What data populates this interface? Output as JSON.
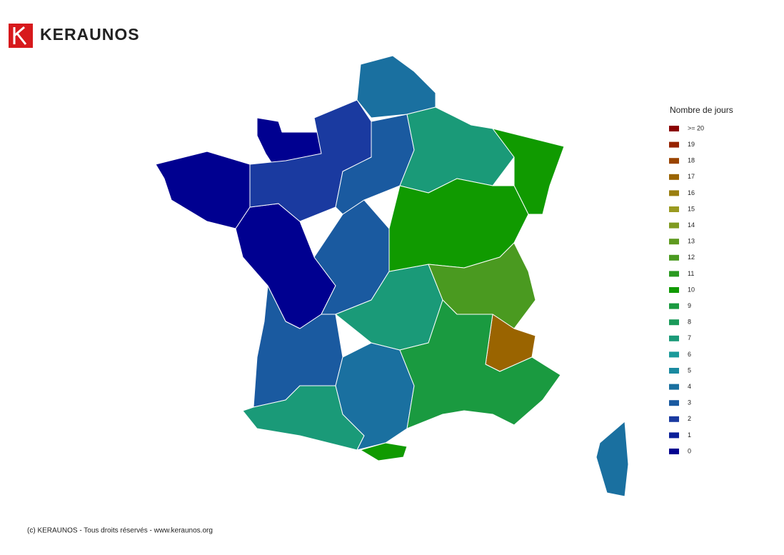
{
  "header": {
    "brand": "KERAUNOS"
  },
  "legend": {
    "title": "Nombre de jours",
    "items": [
      {
        "label": ">= 20",
        "color": "#8b0000"
      },
      {
        "label": "19",
        "color": "#962300"
      },
      {
        "label": "18",
        "color": "#9a4400"
      },
      {
        "label": "17",
        "color": "#9a6400"
      },
      {
        "label": "16",
        "color": "#9a7f10"
      },
      {
        "label": "15",
        "color": "#9a9a20"
      },
      {
        "label": "14",
        "color": "#7f9a20"
      },
      {
        "label": "13",
        "color": "#5f9a20"
      },
      {
        "label": "12",
        "color": "#4a9a20"
      },
      {
        "label": "11",
        "color": "#2a9a20"
      },
      {
        "label": "10",
        "color": "#109a00"
      },
      {
        "label": "9",
        "color": "#1a9a40"
      },
      {
        "label": "8",
        "color": "#1a9a5a"
      },
      {
        "label": "7",
        "color": "#1a9a78"
      },
      {
        "label": "6",
        "color": "#1a9a9a"
      },
      {
        "label": "5",
        "color": "#1a8aa0"
      },
      {
        "label": "4",
        "color": "#1a70a0"
      },
      {
        "label": "3",
        "color": "#1a5aa0"
      },
      {
        "label": "2",
        "color": "#1a3aa0"
      },
      {
        "label": "1",
        "color": "#0a1f99"
      },
      {
        "label": "0",
        "color": "#000090"
      }
    ]
  },
  "map": {
    "regions": [
      0,
      0,
      0,
      2,
      4,
      3,
      3,
      3,
      7,
      4,
      7,
      10,
      7,
      10,
      10,
      12,
      17,
      9,
      4
    ]
  },
  "footer": {
    "text": "(c) KERAUNOS - Tous droits réservés - www.keraunos.org"
  }
}
